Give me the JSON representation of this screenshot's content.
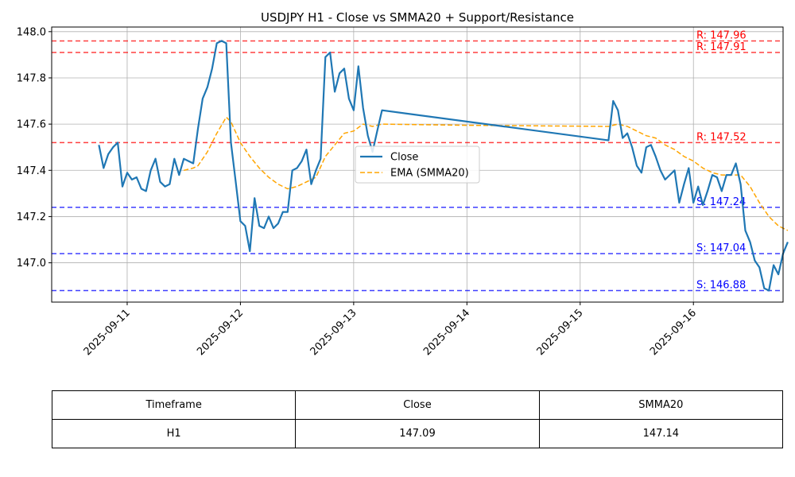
{
  "chart_data": {
    "type": "line",
    "title": "USDJPY H1 - Close vs SMMA20 + Support/Resistance",
    "xlabel": "",
    "ylabel": "",
    "x_ticks": [
      "2025-09-11",
      "2025-09-12",
      "2025-09-13",
      "2025-09-14",
      "2025-09-15",
      "2025-09-16"
    ],
    "y_ticks": [
      "147.0",
      "147.2",
      "147.4",
      "147.6",
      "147.8",
      "148.0"
    ],
    "xlim": [
      "2025-09-10 08:00",
      "2025-09-16 19:00"
    ],
    "ylim": [
      146.83,
      148.02
    ],
    "grid": true,
    "legend_position": "center",
    "colors": {
      "close": "#1f77b4",
      "ema": "#ffa500",
      "resistance": "#ff0000",
      "support": "#0000ff"
    },
    "series": [
      {
        "name": "Close",
        "style": "solid",
        "points": [
          [
            "2025-09-10 18:00",
            147.51
          ],
          [
            "2025-09-10 19:00",
            147.41
          ],
          [
            "2025-09-10 20:00",
            147.47
          ],
          [
            "2025-09-10 21:00",
            147.5
          ],
          [
            "2025-09-10 22:00",
            147.52
          ],
          [
            "2025-09-10 23:00",
            147.33
          ],
          [
            "2025-09-11 00:00",
            147.39
          ],
          [
            "2025-09-11 01:00",
            147.36
          ],
          [
            "2025-09-11 02:00",
            147.37
          ],
          [
            "2025-09-11 03:00",
            147.32
          ],
          [
            "2025-09-11 04:00",
            147.31
          ],
          [
            "2025-09-11 05:00",
            147.4
          ],
          [
            "2025-09-11 06:00",
            147.45
          ],
          [
            "2025-09-11 07:00",
            147.35
          ],
          [
            "2025-09-11 08:00",
            147.33
          ],
          [
            "2025-09-11 09:00",
            147.34
          ],
          [
            "2025-09-11 10:00",
            147.45
          ],
          [
            "2025-09-11 11:00",
            147.38
          ],
          [
            "2025-09-11 12:00",
            147.45
          ],
          [
            "2025-09-11 13:00",
            147.44
          ],
          [
            "2025-09-11 14:00",
            147.43
          ],
          [
            "2025-09-11 15:00",
            147.58
          ],
          [
            "2025-09-11 16:00",
            147.71
          ],
          [
            "2025-09-11 17:00",
            147.76
          ],
          [
            "2025-09-11 18:00",
            147.84
          ],
          [
            "2025-09-11 19:00",
            147.95
          ],
          [
            "2025-09-11 20:00",
            147.96
          ],
          [
            "2025-09-11 21:00",
            147.95
          ],
          [
            "2025-09-11 22:00",
            147.52
          ],
          [
            "2025-09-11 23:00",
            147.35
          ],
          [
            "2025-09-12 00:00",
            147.18
          ],
          [
            "2025-09-12 01:00",
            147.16
          ],
          [
            "2025-09-12 02:00",
            147.05
          ],
          [
            "2025-09-12 03:00",
            147.28
          ],
          [
            "2025-09-12 04:00",
            147.16
          ],
          [
            "2025-09-12 05:00",
            147.15
          ],
          [
            "2025-09-12 06:00",
            147.2
          ],
          [
            "2025-09-12 07:00",
            147.15
          ],
          [
            "2025-09-12 08:00",
            147.17
          ],
          [
            "2025-09-12 09:00",
            147.22
          ],
          [
            "2025-09-12 10:00",
            147.22
          ],
          [
            "2025-09-12 11:00",
            147.4
          ],
          [
            "2025-09-12 12:00",
            147.41
          ],
          [
            "2025-09-12 13:00",
            147.44
          ],
          [
            "2025-09-12 14:00",
            147.49
          ],
          [
            "2025-09-12 15:00",
            147.34
          ],
          [
            "2025-09-12 16:00",
            147.4
          ],
          [
            "2025-09-12 17:00",
            147.45
          ],
          [
            "2025-09-12 18:00",
            147.89
          ],
          [
            "2025-09-12 19:00",
            147.91
          ],
          [
            "2025-09-12 20:00",
            147.74
          ],
          [
            "2025-09-12 21:00",
            147.82
          ],
          [
            "2025-09-12 22:00",
            147.84
          ],
          [
            "2025-09-12 23:00",
            147.71
          ],
          [
            "2025-09-13 00:00",
            147.66
          ],
          [
            "2025-09-13 01:00",
            147.85
          ],
          [
            "2025-09-13 02:00",
            147.67
          ],
          [
            "2025-09-13 03:00",
            147.55
          ],
          [
            "2025-09-13 04:00",
            147.48
          ],
          [
            "2025-09-13 05:00",
            147.57
          ],
          [
            "2025-09-13 06:00",
            147.66
          ],
          [
            "2025-09-15 06:00",
            147.53
          ],
          [
            "2025-09-15 07:00",
            147.7
          ],
          [
            "2025-09-15 08:00",
            147.66
          ],
          [
            "2025-09-15 09:00",
            147.54
          ],
          [
            "2025-09-15 10:00",
            147.56
          ],
          [
            "2025-09-15 11:00",
            147.5
          ],
          [
            "2025-09-15 12:00",
            147.42
          ],
          [
            "2025-09-15 13:00",
            147.39
          ],
          [
            "2025-09-15 14:00",
            147.5
          ],
          [
            "2025-09-15 15:00",
            147.51
          ],
          [
            "2025-09-15 16:00",
            147.46
          ],
          [
            "2025-09-15 17:00",
            147.4
          ],
          [
            "2025-09-15 18:00",
            147.36
          ],
          [
            "2025-09-15 19:00",
            147.38
          ],
          [
            "2025-09-15 20:00",
            147.4
          ],
          [
            "2025-09-15 21:00",
            147.26
          ],
          [
            "2025-09-15 22:00",
            147.34
          ],
          [
            "2025-09-15 23:00",
            147.41
          ],
          [
            "2025-09-16 00:00",
            147.26
          ],
          [
            "2025-09-16 01:00",
            147.33
          ],
          [
            "2025-09-16 02:00",
            147.25
          ],
          [
            "2025-09-16 03:00",
            147.31
          ],
          [
            "2025-09-16 04:00",
            147.38
          ],
          [
            "2025-09-16 05:00",
            147.37
          ],
          [
            "2025-09-16 06:00",
            147.31
          ],
          [
            "2025-09-16 07:00",
            147.38
          ],
          [
            "2025-09-16 08:00",
            147.38
          ],
          [
            "2025-09-16 09:00",
            147.43
          ],
          [
            "2025-09-16 10:00",
            147.34
          ],
          [
            "2025-09-16 11:00",
            147.14
          ],
          [
            "2025-09-16 12:00",
            147.09
          ],
          [
            "2025-09-16 13:00",
            147.01
          ],
          [
            "2025-09-16 14:00",
            146.98
          ],
          [
            "2025-09-16 15:00",
            146.89
          ],
          [
            "2025-09-16 16:00",
            146.88
          ],
          [
            "2025-09-16 17:00",
            146.99
          ],
          [
            "2025-09-16 18:00",
            146.95
          ],
          [
            "2025-09-16 19:00",
            147.04
          ],
          [
            "2025-09-16 20:00",
            147.09
          ]
        ]
      },
      {
        "name": "EMA (SMMA20)",
        "style": "dashed",
        "points": [
          [
            "2025-09-11 12:00",
            147.4
          ],
          [
            "2025-09-11 14:00",
            147.41
          ],
          [
            "2025-09-11 15:00",
            147.42
          ],
          [
            "2025-09-11 17:00",
            147.48
          ],
          [
            "2025-09-11 19:00",
            147.56
          ],
          [
            "2025-09-11 21:00",
            147.63
          ],
          [
            "2025-09-11 22:00",
            147.61
          ],
          [
            "2025-09-12 00:00",
            147.52
          ],
          [
            "2025-09-12 02:00",
            147.46
          ],
          [
            "2025-09-12 04:00",
            147.41
          ],
          [
            "2025-09-12 06:00",
            147.37
          ],
          [
            "2025-09-12 08:00",
            147.34
          ],
          [
            "2025-09-12 10:00",
            147.32
          ],
          [
            "2025-09-12 12:00",
            147.33
          ],
          [
            "2025-09-12 14:00",
            147.35
          ],
          [
            "2025-09-12 16:00",
            147.37
          ],
          [
            "2025-09-12 18:00",
            147.46
          ],
          [
            "2025-09-12 20:00",
            147.51
          ],
          [
            "2025-09-12 22:00",
            147.56
          ],
          [
            "2025-09-13 00:00",
            147.57
          ],
          [
            "2025-09-13 02:00",
            147.6
          ],
          [
            "2025-09-13 04:00",
            147.59
          ],
          [
            "2025-09-13 06:00",
            147.6
          ],
          [
            "2025-09-14 00:00",
            147.595
          ],
          [
            "2025-09-15 06:00",
            147.59
          ],
          [
            "2025-09-15 08:00",
            147.6
          ],
          [
            "2025-09-15 10:00",
            147.59
          ],
          [
            "2025-09-15 12:00",
            147.57
          ],
          [
            "2025-09-15 14:00",
            147.55
          ],
          [
            "2025-09-15 16:00",
            147.54
          ],
          [
            "2025-09-15 18:00",
            147.51
          ],
          [
            "2025-09-15 20:00",
            147.49
          ],
          [
            "2025-09-15 22:00",
            147.46
          ],
          [
            "2025-09-16 00:00",
            147.44
          ],
          [
            "2025-09-16 02:00",
            147.41
          ],
          [
            "2025-09-16 04:00",
            147.39
          ],
          [
            "2025-09-16 06:00",
            147.38
          ],
          [
            "2025-09-16 08:00",
            147.38
          ],
          [
            "2025-09-16 10:00",
            147.38
          ],
          [
            "2025-09-16 12:00",
            147.33
          ],
          [
            "2025-09-16 14:00",
            147.26
          ],
          [
            "2025-09-16 16:00",
            147.2
          ],
          [
            "2025-09-16 18:00",
            147.16
          ],
          [
            "2025-09-16 20:00",
            147.14
          ]
        ]
      }
    ],
    "levels": [
      {
        "kind": "resistance",
        "value": 147.96,
        "label": "R: 147.96"
      },
      {
        "kind": "resistance",
        "value": 147.91,
        "label": "R: 147.91"
      },
      {
        "kind": "resistance",
        "value": 147.52,
        "label": "R: 147.52"
      },
      {
        "kind": "support",
        "value": 147.24,
        "label": "S: 147.24"
      },
      {
        "kind": "support",
        "value": 147.04,
        "label": "S: 147.04"
      },
      {
        "kind": "support",
        "value": 146.88,
        "label": "S: 146.88"
      }
    ]
  },
  "table": {
    "headers": [
      "Timeframe",
      "Close",
      "SMMA20"
    ],
    "rows": [
      [
        "H1",
        "147.09",
        "147.14"
      ]
    ]
  }
}
